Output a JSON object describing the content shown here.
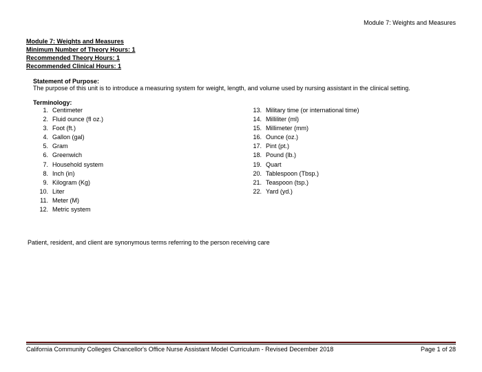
{
  "header": {
    "right": "Module 7: Weights and Measures"
  },
  "module_headers": [
    "Module 7: Weights and Measures",
    "Minimum Number of Theory Hours: 1",
    "Recommended Theory Hours: 1",
    "Recommended Clinical Hours: 1"
  ],
  "statement": {
    "title": "Statement of Purpose",
    "body": "The purpose of this unit is to introduce a measuring system for weight, length, and volume used by nursing assistant in the clinical setting."
  },
  "terminology": {
    "title": "Terminology",
    "left": [
      {
        "n": "1.",
        "t": "Centimeter"
      },
      {
        "n": "2.",
        "t": "Fluid ounce (fl oz.)"
      },
      {
        "n": "3.",
        "t": "Foot (ft.)"
      },
      {
        "n": "4.",
        "t": "Gallon (gal)"
      },
      {
        "n": "5.",
        "t": "Gram"
      },
      {
        "n": "6.",
        "t": "Greenwich"
      },
      {
        "n": "7.",
        "t": "Household system"
      },
      {
        "n": "8.",
        "t": "Inch (in)"
      },
      {
        "n": "9.",
        "t": "Kilogram (Kg)"
      },
      {
        "n": "10.",
        "t": "Liter"
      },
      {
        "n": "11.",
        "t": "Meter (M)"
      },
      {
        "n": "12.",
        "t": "Metric system"
      }
    ],
    "right": [
      {
        "n": "13.",
        "t": "Military time (or international time)"
      },
      {
        "n": "14.",
        "t": "Milliliter (ml)"
      },
      {
        "n": "15.",
        "t": "Millimeter (mm)"
      },
      {
        "n": "16.",
        "t": "Ounce (oz.)"
      },
      {
        "n": "17.",
        "t": "Pint (pt.)"
      },
      {
        "n": "18.",
        "t": "Pound (lb.)"
      },
      {
        "n": "19.",
        "t": "Quart"
      },
      {
        "n": "20.",
        "t": "Tablespoon (Tbsp.)"
      },
      {
        "n": "21.",
        "t": "Teaspoon (tsp.)"
      },
      {
        "n": "22.",
        "t": "Yard (yd.)"
      }
    ]
  },
  "note": "Patient, resident, and client are synonymous terms referring to the person receiving care",
  "footer": {
    "left": "California Community Colleges Chancellor's Office Nurse Assistant Model Curriculum - Revised December 2018",
    "right": "Page 1 of 28",
    "line_color": "#5a0e0e"
  },
  "styles": {
    "background_color": "#ffffff",
    "text_color": "#000000",
    "base_fontsize": 9,
    "font_family": "Arial"
  }
}
